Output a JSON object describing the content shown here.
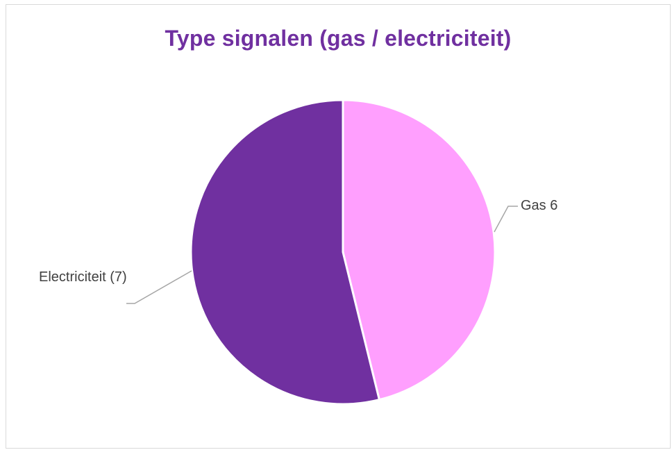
{
  "chart_data": {
    "type": "pie",
    "title": "Type signalen (gas / electriciteit)",
    "slices": [
      {
        "label": "Gas 6",
        "value": 6,
        "color": "#ff9ffe"
      },
      {
        "label": "Electriciteit (7)",
        "value": 7,
        "color": "#7030a0"
      }
    ],
    "legend": "none",
    "data_labels": "outside with leader lines"
  },
  "colors": {
    "title": "#7030a0",
    "leader_line": "#a6a6a6",
    "frame_border": "#d9d9d9"
  }
}
